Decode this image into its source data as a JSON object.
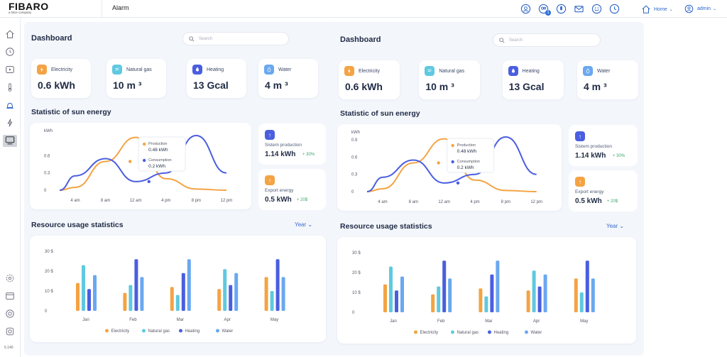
{
  "app": {
    "logo": "FIBARO",
    "logo_sub": "a Nice company",
    "title": "Alarm",
    "home_label": "Home",
    "user": "admin",
    "version": "5.140",
    "notifications": "1"
  },
  "colors": {
    "electricity": "#f4a343",
    "natural_gas": "#5fc9e0",
    "heating": "#4a5ee0",
    "water": "#6aa8f0",
    "accent": "#3a6bd1"
  },
  "panels": [
    {
      "title": "Dashboard",
      "search_placeholder": "Search",
      "cards": [
        {
          "label": "Electricity",
          "value": "0.6 kWh"
        },
        {
          "label": "Natural gas",
          "value": "10 m ³"
        },
        {
          "label": "Heating",
          "value": "13 Gcal"
        },
        {
          "label": "Water",
          "value": "4 m ³"
        }
      ],
      "sun_title": "Statistic of sun energy",
      "unit": "kWh",
      "tooltip": {
        "prod_label": "Production",
        "prod_value": "0.48 kWh",
        "cons_label": "Consumption",
        "cons_value": "0.2 kWh"
      },
      "side": [
        {
          "label": "Sistem production",
          "value": "1.14 kWh",
          "pct": "+ 30%"
        },
        {
          "label": "Export energy",
          "value": "0.5 kWh",
          "pct": "+ 20$"
        }
      ],
      "res_title": "Resource usage statistics",
      "year": "Year"
    },
    {
      "title": "Dashboard",
      "search_placeholder": "Search",
      "cards": [
        {
          "label": "Electricity",
          "value": "0.6 kWh"
        },
        {
          "label": "Natural gas",
          "value": "10 m ³"
        },
        {
          "label": "Heating",
          "value": "13 Gcal"
        },
        {
          "label": "Water",
          "value": "4 m ³"
        }
      ],
      "sun_title": "Statistic of sun energy",
      "unit": "kWh",
      "tooltip": {
        "prod_label": "Production",
        "prod_value": "0.48 kWh",
        "cons_label": "Consumption",
        "cons_value": "0.2 kWh"
      },
      "side": [
        {
          "label": "Sistem production",
          "value": "1.14 kWh",
          "pct": "+ 30%"
        },
        {
          "label": "Export energy",
          "value": "0.5 kWh",
          "pct": "+ 20$"
        }
      ],
      "res_title": "Resource usage statistics",
      "year": "Year"
    }
  ],
  "chart_data": [
    {
      "type": "line",
      "title": "Statistic of sun energy",
      "ylabel": "kWh",
      "x": [
        "4 am",
        "8 am",
        "12 am",
        "4 pm",
        "8 pm",
        "12 pm"
      ],
      "ylim": [
        0,
        1.0
      ],
      "yticks_left": [
        "0.6",
        "0.3",
        "0"
      ],
      "yticks_right": [
        "0.9",
        "0.6",
        "0.3",
        "0"
      ],
      "series": [
        {
          "name": "Production",
          "values": [
            0.05,
            0.5,
            0.92,
            0.2,
            0.02,
            0.0
          ]
        },
        {
          "name": "Consumption",
          "values": [
            0.25,
            0.55,
            0.15,
            0.3,
            0.95,
            0.3
          ]
        }
      ]
    },
    {
      "type": "bar",
      "title": "Resource usage statistics",
      "categories": [
        "Jan",
        "Feb",
        "Mar",
        "Apr",
        "May"
      ],
      "yticks": [
        "30 $",
        "20 $",
        "10 $",
        "0"
      ],
      "ylim": [
        0,
        30
      ],
      "series": [
        {
          "name": "Electricity",
          "values": [
            14,
            9,
            12,
            11,
            17
          ]
        },
        {
          "name": "Natural gas",
          "values": [
            23,
            13,
            8,
            21,
            10
          ]
        },
        {
          "name": "Heating",
          "values": [
            11,
            26,
            19,
            13,
            26
          ]
        },
        {
          "name": "Water",
          "values": [
            18,
            17,
            26,
            19,
            17
          ]
        }
      ]
    }
  ]
}
